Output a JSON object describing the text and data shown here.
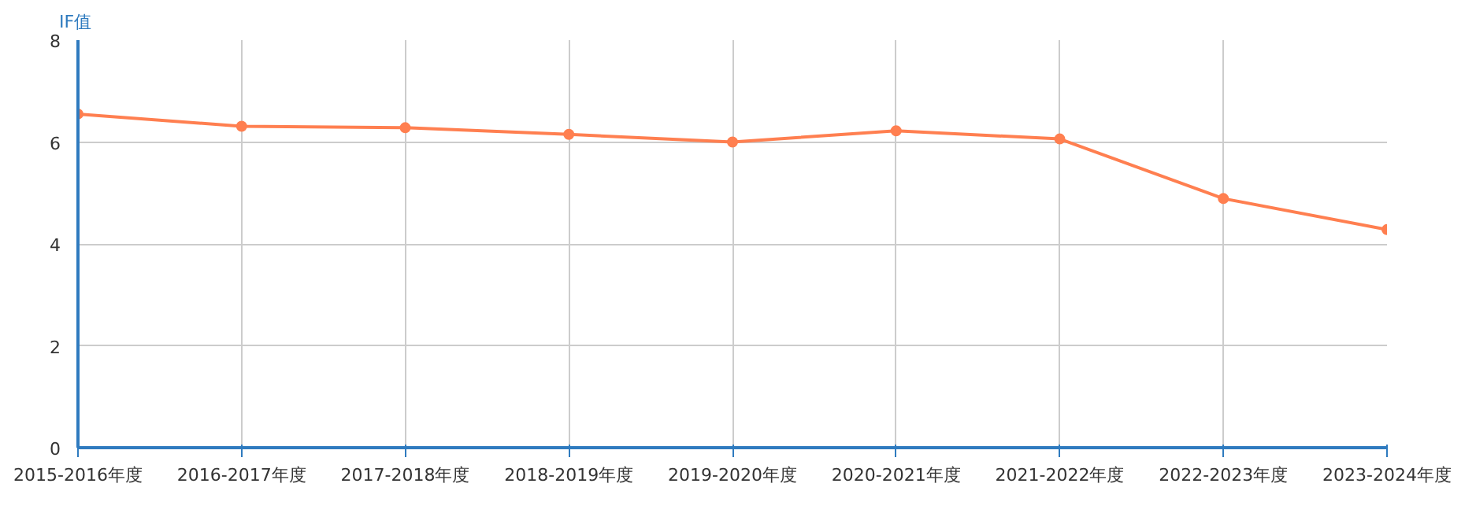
{
  "chart_data": {
    "type": "line",
    "ylabel": "IF值",
    "categories": [
      "2015-2016年度",
      "2016-2017年度",
      "2017-2018年度",
      "2018-2019年度",
      "2019-2020年度",
      "2020-2021年度",
      "2021-2022年度",
      "2022-2023年度",
      "2023-2024年度"
    ],
    "series": [
      {
        "color": "#ff7f50",
        "values": [
          6.55,
          6.31,
          6.28,
          6.15,
          6.0,
          6.22,
          6.06,
          4.89,
          4.28
        ]
      }
    ],
    "ylim": [
      0,
      8
    ],
    "yticks": [
      0,
      2,
      4,
      6,
      8
    ],
    "grid": true,
    "marker": "circle",
    "line_style": "solid"
  }
}
